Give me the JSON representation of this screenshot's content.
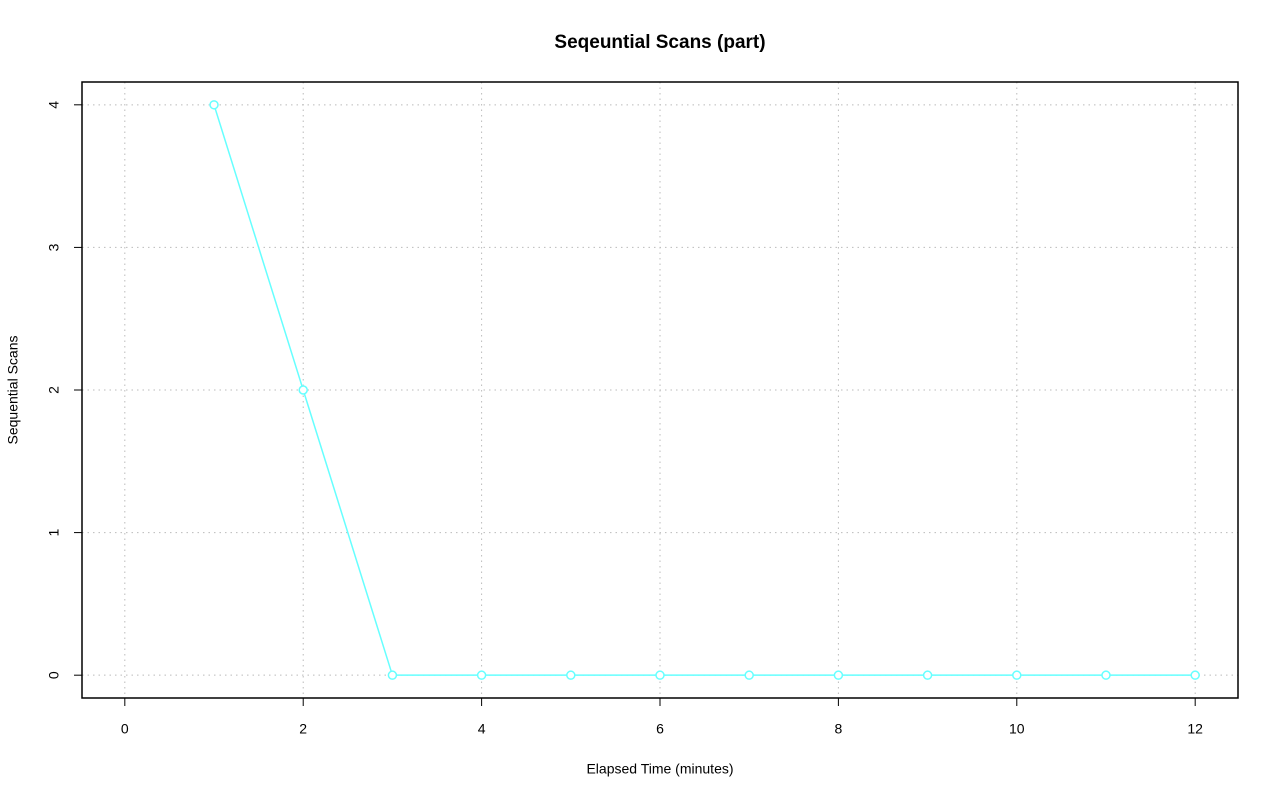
{
  "chart_data": {
    "type": "line",
    "title": "Seqeuntial Scans (part)",
    "x_label": "Elapsed Time (minutes)",
    "y_label": "Sequential Scans",
    "x": [
      1,
      2,
      3,
      4,
      5,
      6,
      7,
      8,
      9,
      10,
      11,
      12
    ],
    "values": [
      4,
      2,
      0,
      0,
      0,
      0,
      0,
      0,
      0,
      0,
      0,
      0
    ],
    "color": "#66ffff",
    "xlim": [
      -0.48,
      12.48
    ],
    "xticks": [
      0,
      2,
      4,
      6,
      8,
      10,
      12
    ],
    "ylim": [
      -0.16,
      4.16
    ],
    "yticks": [
      0,
      1,
      2,
      3,
      4
    ],
    "grid": true,
    "markers": true
  }
}
